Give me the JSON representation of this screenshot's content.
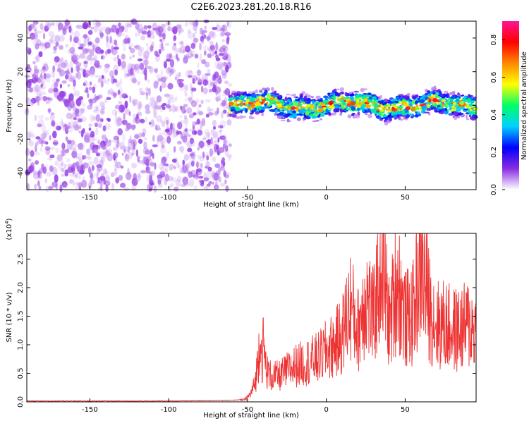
{
  "title": "C2E6.2023.281.20.18.R16",
  "colors": {
    "snr_line": "#ee3333",
    "axis": "#000000",
    "background": "#ffffff",
    "colormap": [
      "#ffffff",
      "#8a2be2",
      "#0000ff",
      "#00d0ff",
      "#00ff66",
      "#ffff00",
      "#ff8800",
      "#ff0000",
      "#ff1493"
    ]
  },
  "chart_data": [
    {
      "type": "heatmap",
      "panel": "spectrogram",
      "xlabel": "Height of straight line (km)",
      "ylabel": "Frequency (Hz)",
      "xlim": [
        -190,
        95
      ],
      "ylim": [
        -50,
        50
      ],
      "xticks": [
        -150,
        -100,
        -50,
        0,
        50
      ],
      "yticks": [
        -40,
        -20,
        0,
        20,
        40
      ],
      "grid": false,
      "colorbar": {
        "label": "Normalized spectral amplitude",
        "range": [
          0.0,
          0.9
        ],
        "ticks": [
          "0.0",
          "0.2",
          "0.4",
          "0.6",
          "0.8"
        ]
      },
      "regions": [
        {
          "x_range": [
            -190,
            -61
          ],
          "description_values": {
            "freq_spread_hz": [
              -50,
              50
            ],
            "amplitude_range": [
              0.0,
              0.25
            ]
          }
        },
        {
          "x_range": [
            -61,
            95
          ],
          "description_values": {
            "freq_center_hz": 0,
            "freq_halfwidth_hz": 8,
            "amplitude_range": [
              0.05,
              0.9
            ]
          }
        }
      ]
    },
    {
      "type": "line",
      "panel": "snr",
      "xlabel": "Height of straight line (km)",
      "ylabel": "SNR (10 * v/v)",
      "y_multiplier_label": "(x10^4)",
      "y_multiplier_base": "(x10",
      "y_multiplier_exp": "4",
      "xlim": [
        -190,
        95
      ],
      "ylim": [
        0.0,
        2.95
      ],
      "xticks": [
        -150,
        -100,
        -50,
        0,
        50
      ],
      "yticks": [
        "0.0",
        "0.5",
        "1.0",
        "1.5",
        "2.0",
        "2.5"
      ],
      "grid": false,
      "series": [
        {
          "x": [
            -190,
            -150,
            -100,
            -60,
            -52,
            -48,
            -45,
            -43,
            -42,
            -41,
            -40,
            -38,
            -35,
            -30,
            -25,
            -20,
            -15,
            -10,
            -5,
            0,
            5,
            10,
            15,
            20,
            25,
            30,
            35,
            40,
            45,
            50,
            55,
            60,
            65,
            70,
            75,
            80,
            85,
            90,
            95
          ],
          "y": [
            0.01,
            0.01,
            0.01,
            0.02,
            0.04,
            0.15,
            0.4,
            0.9,
            1.5,
            0.8,
            1.1,
            0.6,
            0.5,
            0.5,
            0.6,
            0.7,
            0.75,
            0.8,
            0.85,
            1.0,
            1.1,
            1.3,
            1.9,
            1.4,
            2.1,
            1.6,
            2.9,
            1.5,
            2.4,
            1.6,
            1.7,
            2.8,
            1.9,
            1.5,
            1.5,
            1.4,
            1.4,
            1.5,
            1.4
          ]
        }
      ]
    }
  ]
}
